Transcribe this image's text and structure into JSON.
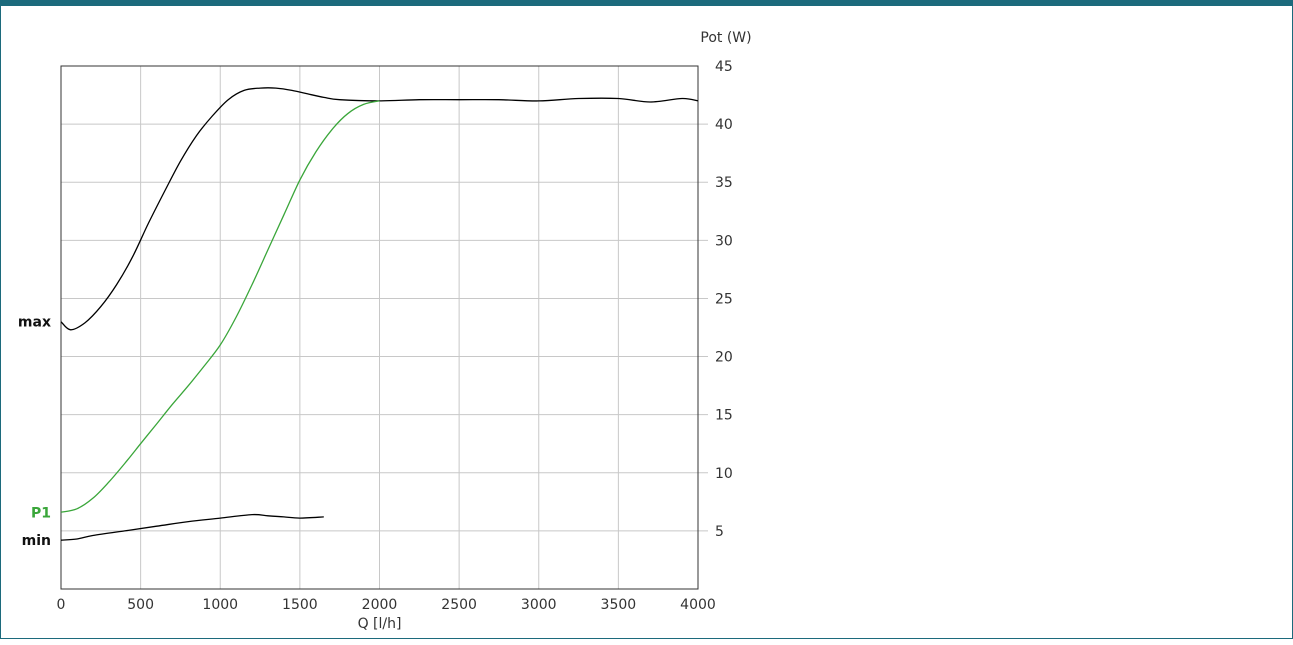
{
  "chart_data": {
    "type": "line",
    "title": "",
    "xlabel": "Q [l/h]",
    "ylabel": "Pot (W)",
    "xlim": [
      0,
      4000
    ],
    "ylim": [
      0,
      45
    ],
    "x_ticks": [
      "0",
      "500",
      "1000",
      "1500",
      "2000",
      "2500",
      "3000",
      "3500",
      "4000"
    ],
    "y_ticks": [
      "5",
      "10",
      "15",
      "20",
      "25",
      "30",
      "35",
      "40",
      "45"
    ],
    "y_axis_side": "right",
    "grid": true,
    "series": [
      {
        "name": "max",
        "color": "#000000",
        "x": [
          0,
          60,
          150,
          250,
          350,
          450,
          550,
          650,
          750,
          850,
          950,
          1050,
          1150,
          1250,
          1350,
          1450,
          1550,
          1650,
          1750,
          2000,
          2250,
          2500,
          2750,
          3000,
          3250,
          3500,
          3700,
          3900,
          4000
        ],
        "y": [
          23,
          22.3,
          22.9,
          24.3,
          26.2,
          28.6,
          31.5,
          34.2,
          36.8,
          39.0,
          40.7,
          42.1,
          42.9,
          43.1,
          43.1,
          42.9,
          42.6,
          42.3,
          42.1,
          42.0,
          42.1,
          42.1,
          42.1,
          42.0,
          42.2,
          42.2,
          41.9,
          42.2,
          42.0
        ]
      },
      {
        "name": "P1",
        "color": "#3aa63a",
        "x": [
          0,
          100,
          200,
          300,
          400,
          500,
          600,
          700,
          800,
          900,
          1000,
          1100,
          1200,
          1300,
          1400,
          1500,
          1600,
          1700,
          1800,
          1900,
          2000
        ],
        "y": [
          6.6,
          6.9,
          7.8,
          9.2,
          10.8,
          12.5,
          14.2,
          15.9,
          17.5,
          19.2,
          21.0,
          23.4,
          26.2,
          29.2,
          32.2,
          35.2,
          37.6,
          39.5,
          40.9,
          41.7,
          42.0
        ]
      },
      {
        "name": "min",
        "color": "#000000",
        "x": [
          0,
          100,
          200,
          400,
          600,
          800,
          1000,
          1200,
          1300,
          1400,
          1500,
          1650
        ],
        "y": [
          4.2,
          4.3,
          4.6,
          5.0,
          5.4,
          5.8,
          6.1,
          6.4,
          6.3,
          6.2,
          6.1,
          6.2
        ]
      }
    ]
  }
}
